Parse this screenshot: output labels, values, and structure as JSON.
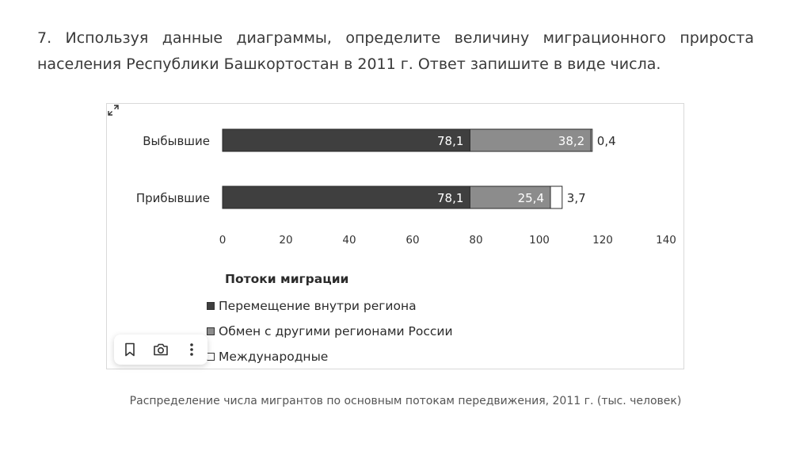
{
  "question": {
    "text": "7. Используя данные диаграммы, определите величину миграционного прироста населения Республики Башкортостан в 2011 г. Ответ запишите в виде числа."
  },
  "chart_data": {
    "type": "bar",
    "orientation": "horizontal",
    "stacked": true,
    "categories": [
      "Выбывшие",
      "Прибывшие"
    ],
    "series": [
      {
        "name": "Перемещение внутри региона",
        "values": [
          78.1,
          78.1
        ],
        "labels": [
          "78,1",
          "78,1"
        ],
        "color": "#3f3f3f"
      },
      {
        "name": "Обмен с другими регионами России",
        "values": [
          38.2,
          25.4
        ],
        "labels": [
          "38,2",
          "25,4"
        ],
        "color": "#8c8c8c"
      },
      {
        "name": "Международные",
        "values": [
          0.4,
          3.7
        ],
        "labels": [
          "0,4",
          "3,7"
        ],
        "color": "#ffffff"
      }
    ],
    "xlim": [
      0,
      140
    ],
    "xticks": [
      "0",
      "20",
      "40",
      "60",
      "80",
      "100",
      "120",
      "140"
    ],
    "legend_title": "Потоки миграции",
    "legend_position": "bottom-left",
    "grid": false
  },
  "caption": "Распределение числа мигрантов по основным потокам передвижения, 2011 г. (тыс. человек)",
  "icons": {
    "expand": "expand-icon",
    "bookmark": "bookmark-icon",
    "camera": "camera-icon",
    "more": "more-vertical-icon"
  }
}
